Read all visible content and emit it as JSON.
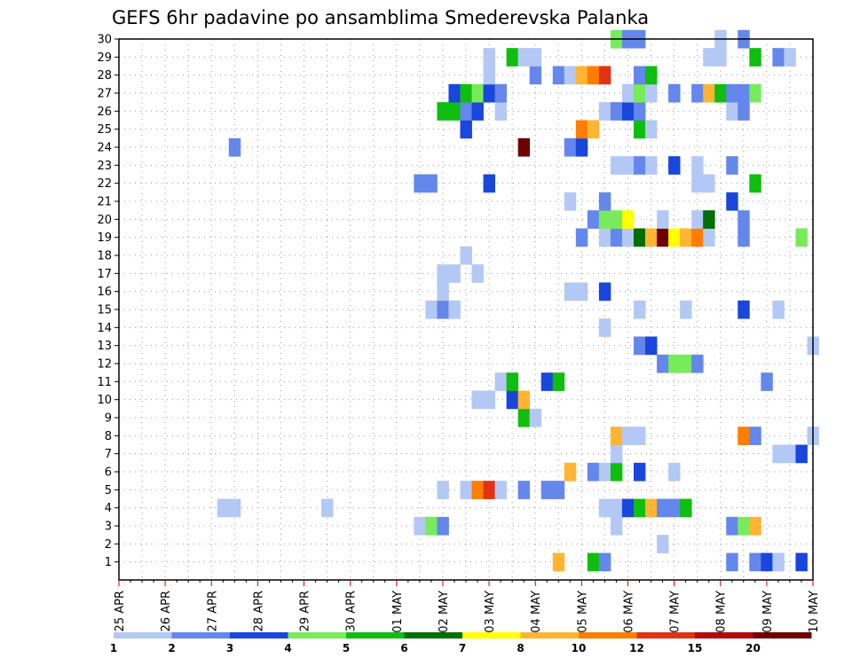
{
  "chart_data": {
    "type": "heatmap",
    "title": "GEFS 6hr padavine po ansamblima Smederevska Palanka",
    "y_labels": [
      "1",
      "2",
      "3",
      "4",
      "5",
      "6",
      "7",
      "8",
      "9",
      "10",
      "11",
      "12",
      "13",
      "14",
      "15",
      "16",
      "17",
      "18",
      "19",
      "20",
      "21",
      "22",
      "23",
      "24",
      "25",
      "26",
      "27",
      "28",
      "29",
      "30"
    ],
    "x_labels": [
      "25 APR",
      "26 APR",
      "27 APR",
      "28 APR",
      "29 APR",
      "30 APR",
      "01 MAY",
      "02 MAY",
      "03 MAY",
      "04 MAY",
      "05 MAY",
      "06 MAY",
      "07 MAY",
      "08 MAY",
      "09 MAY",
      "10 MAY"
    ],
    "steps_per_day": 4,
    "x_range_steps": [
      0,
      60
    ],
    "legend_labels": [
      "1",
      "2",
      "3",
      "4",
      "5",
      "6",
      "7",
      "8",
      "10",
      "12",
      "15",
      "20"
    ],
    "legend_colors": [
      "#b4c8f5",
      "#6487eb",
      "#1946dc",
      "#78eb5a",
      "#0fbe0f",
      "#006e00",
      "#ffff00",
      "#ffb432",
      "#ff7d00",
      "#e13214",
      "#b40a0a",
      "#6e0000"
    ],
    "grid": true,
    "cells": [
      [
        1,
        38,
        9
      ],
      [
        1,
        41,
        5
      ],
      [
        1,
        42,
        2
      ],
      [
        1,
        53,
        2
      ],
      [
        1,
        55,
        2
      ],
      [
        1,
        56,
        3
      ],
      [
        1,
        57,
        1
      ],
      [
        1,
        59,
        3
      ],
      [
        2,
        47,
        1
      ],
      [
        3,
        26,
        1
      ],
      [
        3,
        27,
        4
      ],
      [
        3,
        28,
        2
      ],
      [
        3,
        43,
        1
      ],
      [
        3,
        53,
        2
      ],
      [
        3,
        54,
        4
      ],
      [
        3,
        55,
        8
      ],
      [
        4,
        9,
        1
      ],
      [
        4,
        10,
        1
      ],
      [
        4,
        18,
        1
      ],
      [
        4,
        42,
        1
      ],
      [
        4,
        43,
        1
      ],
      [
        4,
        44,
        3
      ],
      [
        4,
        45,
        5
      ],
      [
        4,
        46,
        9
      ],
      [
        4,
        47,
        2
      ],
      [
        4,
        48,
        2
      ],
      [
        4,
        49,
        5
      ],
      [
        5,
        28,
        1
      ],
      [
        5,
        30,
        1
      ],
      [
        5,
        31,
        10
      ],
      [
        5,
        32,
        12
      ],
      [
        5,
        33,
        1
      ],
      [
        5,
        35,
        2
      ],
      [
        5,
        37,
        2
      ],
      [
        5,
        38,
        2
      ],
      [
        6,
        39,
        9
      ],
      [
        6,
        41,
        2
      ],
      [
        6,
        42,
        1
      ],
      [
        6,
        43,
        5
      ],
      [
        6,
        45,
        3
      ],
      [
        6,
        48,
        1
      ],
      [
        7,
        43,
        1
      ],
      [
        7,
        57,
        1
      ],
      [
        7,
        58,
        1
      ],
      [
        7,
        59,
        3
      ],
      [
        8,
        43,
        8
      ],
      [
        8,
        44,
        1
      ],
      [
        8,
        45,
        1
      ],
      [
        8,
        54,
        10
      ],
      [
        8,
        55,
        2
      ],
      [
        8,
        60,
        1
      ],
      [
        9,
        35,
        5
      ],
      [
        9,
        36,
        1
      ],
      [
        10,
        31,
        1
      ],
      [
        10,
        32,
        1
      ],
      [
        10,
        34,
        3
      ],
      [
        10,
        35,
        8
      ],
      [
        11,
        33,
        1
      ],
      [
        11,
        34,
        5
      ],
      [
        11,
        37,
        3
      ],
      [
        11,
        38,
        5
      ],
      [
        11,
        56,
        2
      ],
      [
        12,
        47,
        2
      ],
      [
        12,
        48,
        4
      ],
      [
        12,
        49,
        4
      ],
      [
        12,
        50,
        2
      ],
      [
        13,
        45,
        2
      ],
      [
        13,
        46,
        3
      ],
      [
        13,
        60,
        1
      ],
      [
        14,
        42,
        1
      ],
      [
        15,
        27,
        1
      ],
      [
        15,
        28,
        2
      ],
      [
        15,
        29,
        1
      ],
      [
        15,
        45,
        1
      ],
      [
        15,
        49,
        1
      ],
      [
        15,
        54,
        3
      ],
      [
        15,
        57,
        1
      ],
      [
        16,
        28,
        1
      ],
      [
        16,
        39,
        1
      ],
      [
        16,
        40,
        1
      ],
      [
        16,
        42,
        3
      ],
      [
        17,
        28,
        1
      ],
      [
        17,
        29,
        1
      ],
      [
        17,
        31,
        1
      ],
      [
        18,
        30,
        1
      ],
      [
        19,
        40,
        2
      ],
      [
        19,
        42,
        1
      ],
      [
        19,
        43,
        2
      ],
      [
        19,
        44,
        1
      ],
      [
        19,
        45,
        6
      ],
      [
        19,
        46,
        9
      ],
      [
        19,
        47,
        20
      ],
      [
        19,
        48,
        7
      ],
      [
        19,
        49,
        8
      ],
      [
        19,
        50,
        10
      ],
      [
        19,
        51,
        1
      ],
      [
        19,
        54,
        2
      ],
      [
        19,
        59,
        4
      ],
      [
        20,
        41,
        2
      ],
      [
        20,
        42,
        4
      ],
      [
        20,
        43,
        4
      ],
      [
        20,
        44,
        7
      ],
      [
        20,
        47,
        1
      ],
      [
        20,
        50,
        1
      ],
      [
        20,
        51,
        6
      ],
      [
        20,
        54,
        2
      ],
      [
        21,
        39,
        1
      ],
      [
        21,
        42,
        2
      ],
      [
        21,
        53,
        3
      ],
      [
        22,
        26,
        2
      ],
      [
        22,
        27,
        2
      ],
      [
        22,
        32,
        3
      ],
      [
        22,
        50,
        1
      ],
      [
        22,
        51,
        1
      ],
      [
        22,
        55,
        5
      ],
      [
        23,
        43,
        1
      ],
      [
        23,
        44,
        1
      ],
      [
        23,
        45,
        2
      ],
      [
        23,
        46,
        1
      ],
      [
        23,
        48,
        3
      ],
      [
        23,
        50,
        1
      ],
      [
        23,
        53,
        2
      ],
      [
        24,
        10,
        2
      ],
      [
        24,
        35,
        20
      ],
      [
        24,
        39,
        2
      ],
      [
        24,
        40,
        3
      ],
      [
        25,
        30,
        3
      ],
      [
        25,
        40,
        10
      ],
      [
        25,
        41,
        8
      ],
      [
        25,
        45,
        5
      ],
      [
        25,
        46,
        1
      ],
      [
        26,
        28,
        5
      ],
      [
        26,
        29,
        5
      ],
      [
        26,
        30,
        2
      ],
      [
        26,
        31,
        3
      ],
      [
        26,
        33,
        1
      ],
      [
        26,
        42,
        1
      ],
      [
        26,
        43,
        2
      ],
      [
        26,
        44,
        3
      ],
      [
        26,
        45,
        2
      ],
      [
        26,
        53,
        1
      ],
      [
        26,
        54,
        2
      ],
      [
        27,
        29,
        3
      ],
      [
        27,
        30,
        5
      ],
      [
        27,
        31,
        4
      ],
      [
        27,
        32,
        3
      ],
      [
        27,
        33,
        2
      ],
      [
        27,
        44,
        1
      ],
      [
        27,
        45,
        4
      ],
      [
        27,
        46,
        1
      ],
      [
        27,
        48,
        2
      ],
      [
        27,
        50,
        2
      ],
      [
        27,
        51,
        8
      ],
      [
        27,
        52,
        5
      ],
      [
        27,
        53,
        2
      ],
      [
        27,
        54,
        2
      ],
      [
        27,
        55,
        4
      ],
      [
        28,
        32,
        1
      ],
      [
        28,
        36,
        2
      ],
      [
        28,
        38,
        2
      ],
      [
        28,
        39,
        1
      ],
      [
        28,
        40,
        9
      ],
      [
        28,
        41,
        10
      ],
      [
        28,
        42,
        12
      ],
      [
        28,
        45,
        2
      ],
      [
        28,
        46,
        5
      ],
      [
        29,
        32,
        1
      ],
      [
        29,
        34,
        5
      ],
      [
        29,
        35,
        1
      ],
      [
        29,
        36,
        1
      ],
      [
        29,
        51,
        1
      ],
      [
        29,
        52,
        1
      ],
      [
        29,
        55,
        5
      ],
      [
        29,
        57,
        2
      ],
      [
        29,
        58,
        1
      ],
      [
        30,
        43,
        4
      ],
      [
        30,
        44,
        2
      ],
      [
        30,
        45,
        2
      ],
      [
        30,
        52,
        1
      ],
      [
        30,
        54,
        2
      ]
    ]
  }
}
